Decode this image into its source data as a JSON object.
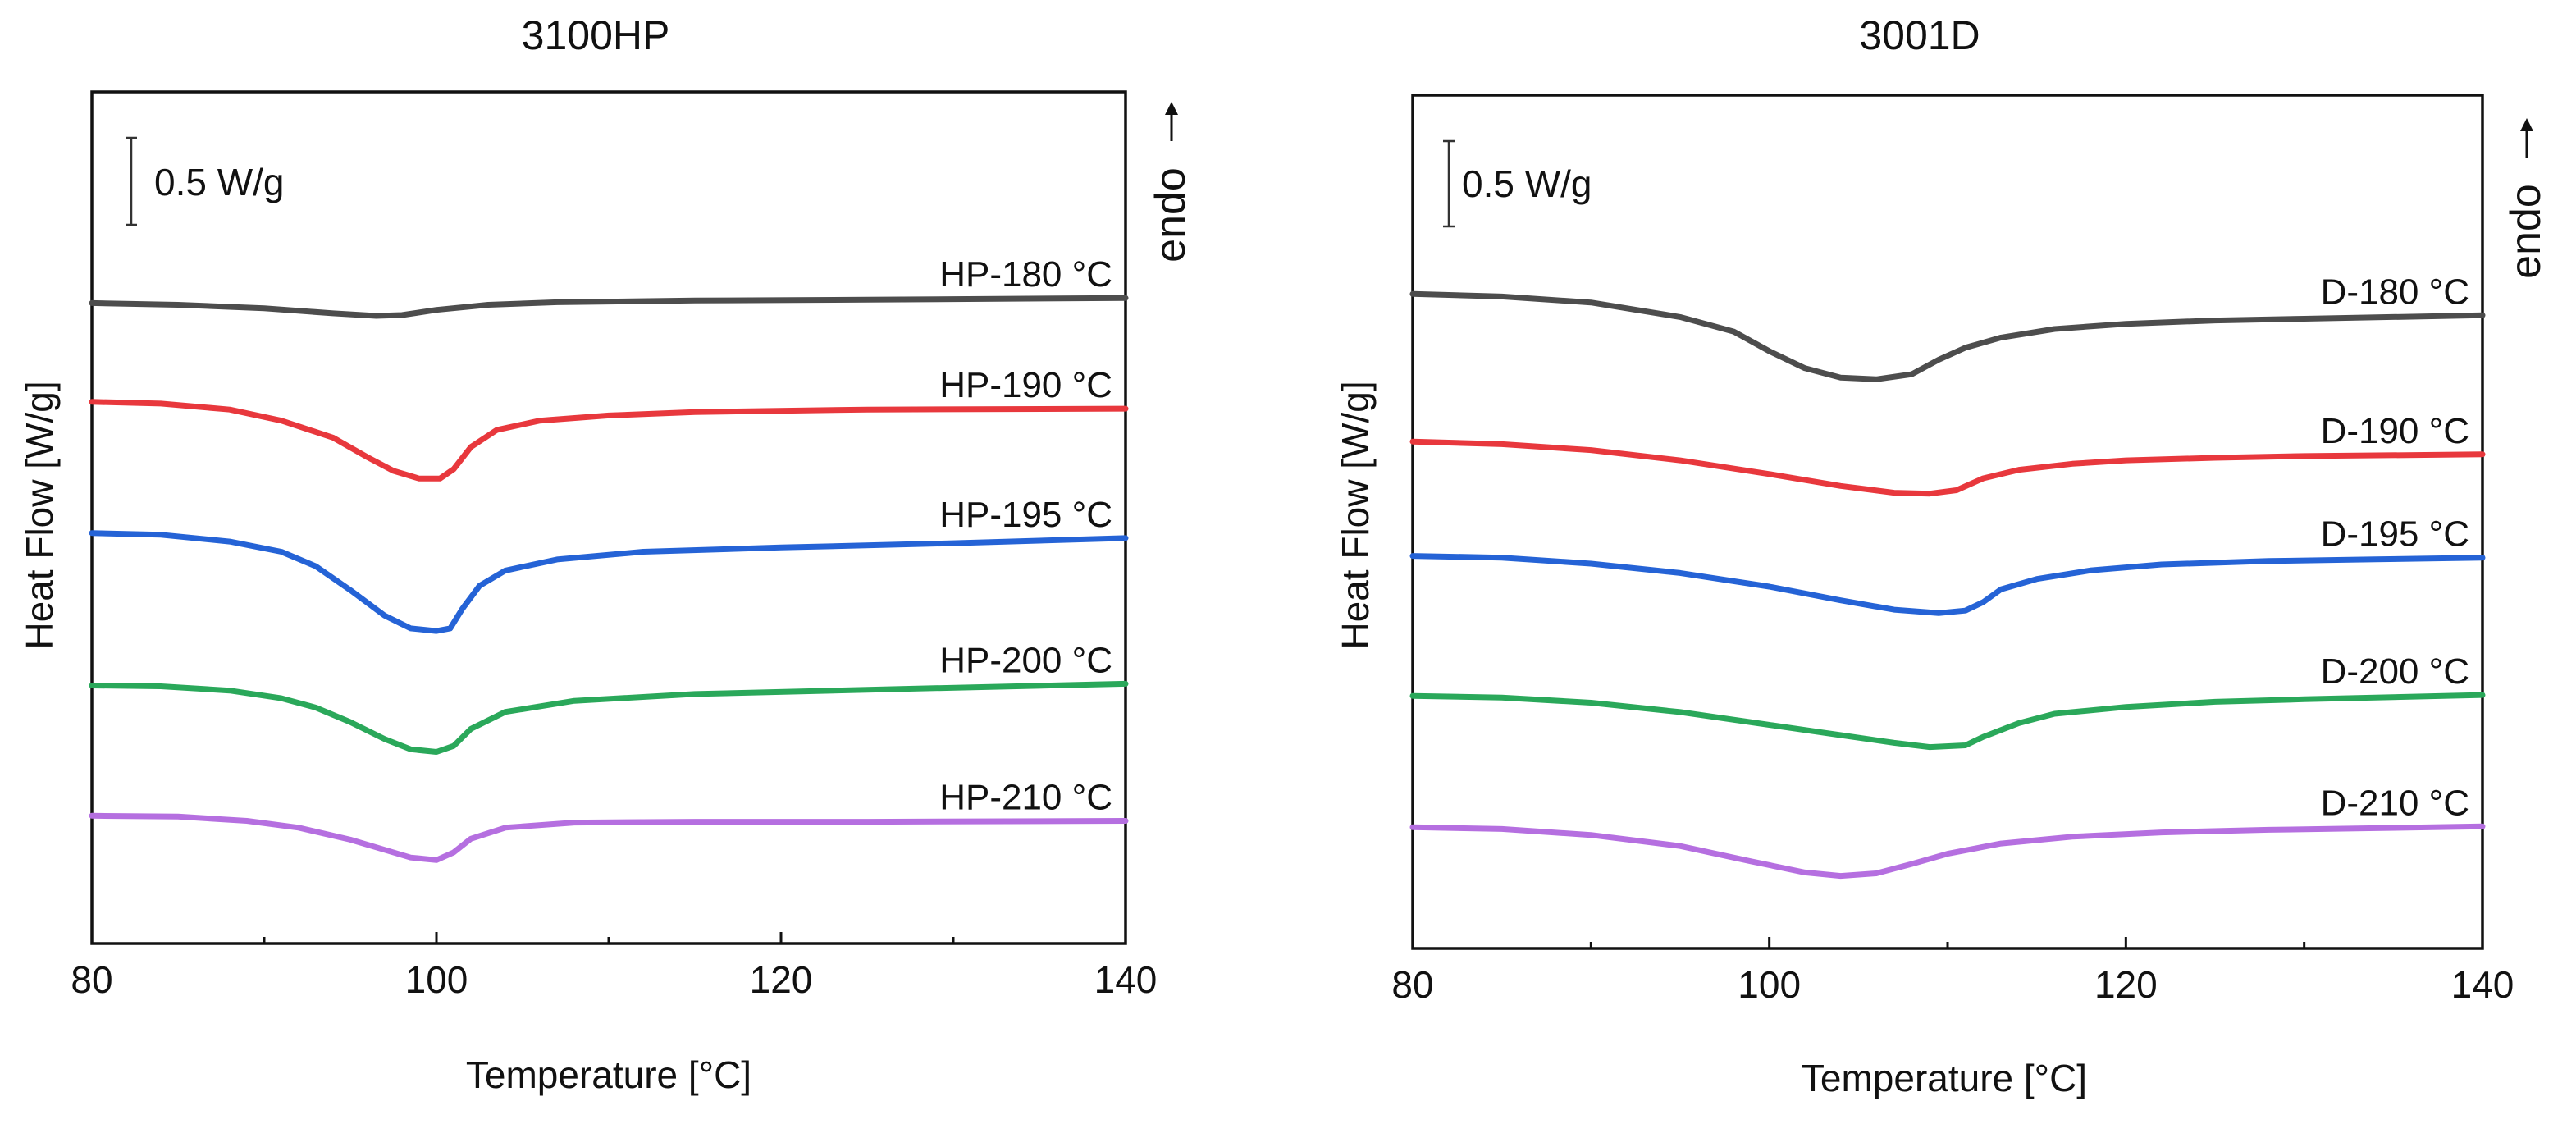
{
  "colors": {
    "180": "#4d4d4d",
    "190": "#e8383d",
    "195": "#2563d6",
    "200": "#2aa85a",
    "210": "#b56fe0"
  },
  "chart_data": [
    {
      "type": "line",
      "title": "3100HP",
      "xlabel": "Temperature [°C]",
      "ylabel": "Heat Flow [W/g]",
      "xlim": [
        80,
        140
      ],
      "xticks": [
        80,
        100,
        120,
        140
      ],
      "xticks_minor": [
        90,
        110,
        130
      ],
      "ylim": [
        0,
        1
      ],
      "scale_bar": "0.5 W/g",
      "endo_label": "endo",
      "series": [
        {
          "name": "HP-180 °C",
          "color_key": "180",
          "x": [
            80,
            85,
            90,
            94,
            96.5,
            98,
            100,
            103,
            107,
            115,
            125,
            140
          ],
          "y": [
            0.752,
            0.75,
            0.746,
            0.74,
            0.737,
            0.738,
            0.744,
            0.75,
            0.753,
            0.755,
            0.756,
            0.758
          ]
        },
        {
          "name": "HP-190 °C",
          "color_key": "190",
          "x": [
            80,
            84,
            88,
            91,
            94,
            96,
            97.5,
            99,
            100.2,
            101,
            102,
            103.5,
            106,
            110,
            115,
            125,
            140
          ],
          "y": [
            0.636,
            0.634,
            0.627,
            0.614,
            0.594,
            0.571,
            0.555,
            0.546,
            0.546,
            0.557,
            0.583,
            0.603,
            0.614,
            0.62,
            0.624,
            0.627,
            0.628
          ]
        },
        {
          "name": "HP-195 °C",
          "color_key": "195",
          "x": [
            80,
            84,
            88,
            91,
            93,
            95,
            97,
            98.5,
            100,
            100.8,
            101.5,
            102.5,
            104,
            107,
            112,
            120,
            130,
            140
          ],
          "y": [
            0.482,
            0.48,
            0.472,
            0.46,
            0.443,
            0.415,
            0.385,
            0.37,
            0.367,
            0.37,
            0.393,
            0.42,
            0.438,
            0.451,
            0.46,
            0.465,
            0.47,
            0.476
          ]
        },
        {
          "name": "HP-200 °C",
          "color_key": "200",
          "x": [
            80,
            84,
            88,
            91,
            93,
            95,
            97,
            98.5,
            100,
            101,
            102,
            104,
            108,
            115,
            125,
            140
          ],
          "y": [
            0.303,
            0.302,
            0.297,
            0.288,
            0.277,
            0.26,
            0.24,
            0.228,
            0.225,
            0.232,
            0.252,
            0.272,
            0.285,
            0.293,
            0.298,
            0.305
          ]
        },
        {
          "name": "HP-210 °C",
          "color_key": "210",
          "x": [
            80,
            85,
            89,
            92,
            95,
            97,
            98.5,
            100,
            101,
            102,
            104,
            108,
            115,
            125,
            140
          ],
          "y": [
            0.15,
            0.149,
            0.144,
            0.136,
            0.122,
            0.11,
            0.101,
            0.098,
            0.107,
            0.123,
            0.136,
            0.142,
            0.143,
            0.143,
            0.144
          ]
        }
      ]
    },
    {
      "type": "line",
      "title": "3001D",
      "xlabel": "Temperature [°C]",
      "ylabel": "Heat Flow [W/g]",
      "xlim": [
        80,
        140
      ],
      "xticks": [
        80,
        100,
        120,
        140
      ],
      "xticks_minor": [
        90,
        110,
        130
      ],
      "ylim": [
        0,
        1
      ],
      "scale_bar": "0.5 W/g",
      "endo_label": "endo",
      "series": [
        {
          "name": "D-180 °C",
          "color_key": "180",
          "x": [
            80,
            85,
            90,
            95,
            98,
            100,
            102,
            104,
            106,
            108,
            109.5,
            111,
            113,
            116,
            120,
            125,
            130,
            140
          ],
          "y": [
            0.767,
            0.764,
            0.757,
            0.74,
            0.723,
            0.7,
            0.68,
            0.669,
            0.667,
            0.673,
            0.69,
            0.704,
            0.716,
            0.726,
            0.732,
            0.736,
            0.738,
            0.742
          ]
        },
        {
          "name": "D-190 °C",
          "color_key": "190",
          "x": [
            80,
            85,
            90,
            95,
            100,
            104,
            107,
            109,
            110.5,
            112,
            114,
            117,
            120,
            125,
            130,
            140
          ],
          "y": [
            0.594,
            0.591,
            0.584,
            0.572,
            0.556,
            0.542,
            0.534,
            0.533,
            0.537,
            0.551,
            0.561,
            0.568,
            0.572,
            0.575,
            0.577,
            0.579
          ]
        },
        {
          "name": "D-195 °C",
          "color_key": "195",
          "x": [
            80,
            85,
            90,
            95,
            100,
            104,
            107,
            109.5,
            111,
            112,
            113,
            115,
            118,
            122,
            128,
            134,
            140
          ],
          "y": [
            0.46,
            0.458,
            0.451,
            0.44,
            0.424,
            0.408,
            0.397,
            0.393,
            0.396,
            0.406,
            0.421,
            0.433,
            0.443,
            0.45,
            0.454,
            0.456,
            0.458
          ]
        },
        {
          "name": "D-200 °C",
          "color_key": "200",
          "x": [
            80,
            85,
            90,
            95,
            100,
            104,
            107,
            109,
            111,
            112,
            114,
            116,
            120,
            125,
            130,
            140
          ],
          "y": [
            0.296,
            0.294,
            0.288,
            0.277,
            0.262,
            0.25,
            0.241,
            0.236,
            0.238,
            0.248,
            0.264,
            0.275,
            0.283,
            0.289,
            0.292,
            0.297
          ]
        },
        {
          "name": "D-210 °C",
          "color_key": "210",
          "x": [
            80,
            85,
            90,
            95,
            99,
            102,
            104,
            106,
            108,
            110,
            113,
            117,
            122,
            128,
            134,
            140
          ],
          "y": [
            0.142,
            0.14,
            0.133,
            0.12,
            0.102,
            0.089,
            0.085,
            0.088,
            0.099,
            0.111,
            0.123,
            0.131,
            0.136,
            0.139,
            0.141,
            0.143
          ]
        }
      ]
    }
  ]
}
